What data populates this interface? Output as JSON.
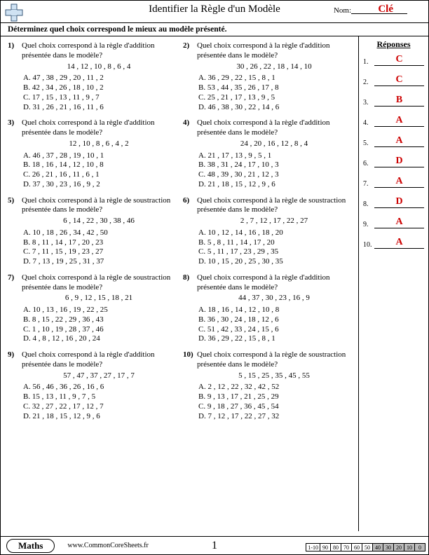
{
  "header": {
    "title": "Identifier la Règle d'un Modèle",
    "nom_label": "Nom:",
    "key": "Clé"
  },
  "instruction": "Déterminez quel choix correspond le mieux au modèle présenté.",
  "answers_header": "Réponses",
  "colors": {
    "key_red": "#c00",
    "shade": "#bbb"
  },
  "questions": [
    {
      "n": "1)",
      "prompt": "Quel choix correspond à la règle d'addition présentée dans le modèle?",
      "seq": "14 , 12 , 10 , 8 , 6 , 4",
      "opts": [
        "A.   47 , 38 , 29 , 20 , 11 , 2",
        "B.   42 , 34 , 26 , 18 , 10 , 2",
        "C.   17 , 15 , 13 , 11 , 9 , 7",
        "D.   31 , 26 , 21 , 16 , 11 , 6"
      ]
    },
    {
      "n": "2)",
      "prompt": "Quel choix correspond à la règle d'addition présentée dans le modèle?",
      "seq": "30 , 26 , 22 , 18 , 14 , 10",
      "opts": [
        "A.   36 , 29 , 22 , 15 , 8 , 1",
        "B.   53 , 44 , 35 , 26 , 17 , 8",
        "C.   25 , 21 , 17 , 13 , 9 , 5",
        "D.   46 , 38 , 30 , 22 , 14 , 6"
      ]
    },
    {
      "n": "3)",
      "prompt": "Quel choix correspond à la règle d'addition présentée dans le modèle?",
      "seq": "12 , 10 , 8 , 6 , 4 , 2",
      "opts": [
        "A.   46 , 37 , 28 , 19 , 10 , 1",
        "B.   18 , 16 , 14 , 12 , 10 , 8",
        "C.   26 , 21 , 16 , 11 , 6 , 1",
        "D.   37 , 30 , 23 , 16 , 9 , 2"
      ]
    },
    {
      "n": "4)",
      "prompt": "Quel choix correspond à la règle d'addition présentée dans le modèle?",
      "seq": "24 , 20 , 16 , 12 , 8 , 4",
      "opts": [
        "A.   21 , 17 , 13 , 9 , 5 , 1",
        "B.   38 , 31 , 24 , 17 , 10 , 3",
        "C.   48 , 39 , 30 , 21 , 12 , 3",
        "D.   21 , 18 , 15 , 12 , 9 , 6"
      ]
    },
    {
      "n": "5)",
      "prompt": "Quel choix correspond à la règle de soustraction présentée dans le modèle?",
      "seq": "6 , 14 , 22 , 30 , 38 , 46",
      "opts": [
        "A.   10 , 18 , 26 , 34 , 42 , 50",
        "B.   8 , 11 , 14 , 17 , 20 , 23",
        "C.   7 , 11 , 15 , 19 , 23 , 27",
        "D.   7 , 13 , 19 , 25 , 31 , 37"
      ]
    },
    {
      "n": "6)",
      "prompt": "Quel choix correspond à la règle de soustraction présentée dans le modèle?",
      "seq": "2 , 7 , 12 , 17 , 22 , 27",
      "opts": [
        "A.   10 , 12 , 14 , 16 , 18 , 20",
        "B.   5 , 8 , 11 , 14 , 17 , 20",
        "C.   5 , 11 , 17 , 23 , 29 , 35",
        "D.   10 , 15 , 20 , 25 , 30 , 35"
      ]
    },
    {
      "n": "7)",
      "prompt": "Quel choix correspond à la règle de soustraction présentée dans le modèle?",
      "seq": "6 , 9 , 12 , 15 , 18 , 21",
      "opts": [
        "A.   10 , 13 , 16 , 19 , 22 , 25",
        "B.   8 , 15 , 22 , 29 , 36 , 43",
        "C.   1 , 10 , 19 , 28 , 37 , 46",
        "D.   4 , 8 , 12 , 16 , 20 , 24"
      ]
    },
    {
      "n": "8)",
      "prompt": "Quel choix correspond à la règle d'addition présentée dans le modèle?",
      "seq": "44 , 37 , 30 , 23 , 16 , 9",
      "opts": [
        "A.   18 , 16 , 14 , 12 , 10 , 8",
        "B.   36 , 30 , 24 , 18 , 12 , 6",
        "C.   51 , 42 , 33 , 24 , 15 , 6",
        "D.   36 , 29 , 22 , 15 , 8 , 1"
      ]
    },
    {
      "n": "9)",
      "prompt": "Quel choix correspond à la règle d'addition présentée dans le modèle?",
      "seq": "57 , 47 , 37 , 27 , 17 , 7",
      "opts": [
        "A.   56 , 46 , 36 , 26 , 16 , 6",
        "B.   15 , 13 , 11 , 9 , 7 , 5",
        "C.   32 , 27 , 22 , 17 , 12 , 7",
        "D.   21 , 18 , 15 , 12 , 9 , 6"
      ]
    },
    {
      "n": "10)",
      "prompt": "Quel choix correspond à la règle de soustraction présentée dans le modèle?",
      "seq": "5 , 15 , 25 , 35 , 45 , 55",
      "opts": [
        "A.   2 , 12 , 22 , 32 , 42 , 52",
        "B.   9 , 13 , 17 , 21 , 25 , 29",
        "C.   9 , 18 , 27 , 36 , 45 , 54",
        "D.   7 , 12 , 17 , 22 , 27 , 32"
      ]
    }
  ],
  "answers": [
    {
      "n": "1.",
      "v": "C"
    },
    {
      "n": "2.",
      "v": "C"
    },
    {
      "n": "3.",
      "v": "B"
    },
    {
      "n": "4.",
      "v": "A"
    },
    {
      "n": "5.",
      "v": "A"
    },
    {
      "n": "6.",
      "v": "D"
    },
    {
      "n": "7.",
      "v": "A"
    },
    {
      "n": "8.",
      "v": "D"
    },
    {
      "n": "9.",
      "v": "A"
    },
    {
      "n": "10.",
      "v": "A"
    }
  ],
  "footer": {
    "subject": "Maths",
    "url": "www.CommonCoreSheets.fr",
    "page": "1",
    "score_label": "1-10",
    "scores": [
      "90",
      "80",
      "70",
      "60",
      "50",
      "40",
      "30",
      "20",
      "10",
      "0"
    ],
    "shaded_from_index": 5
  }
}
